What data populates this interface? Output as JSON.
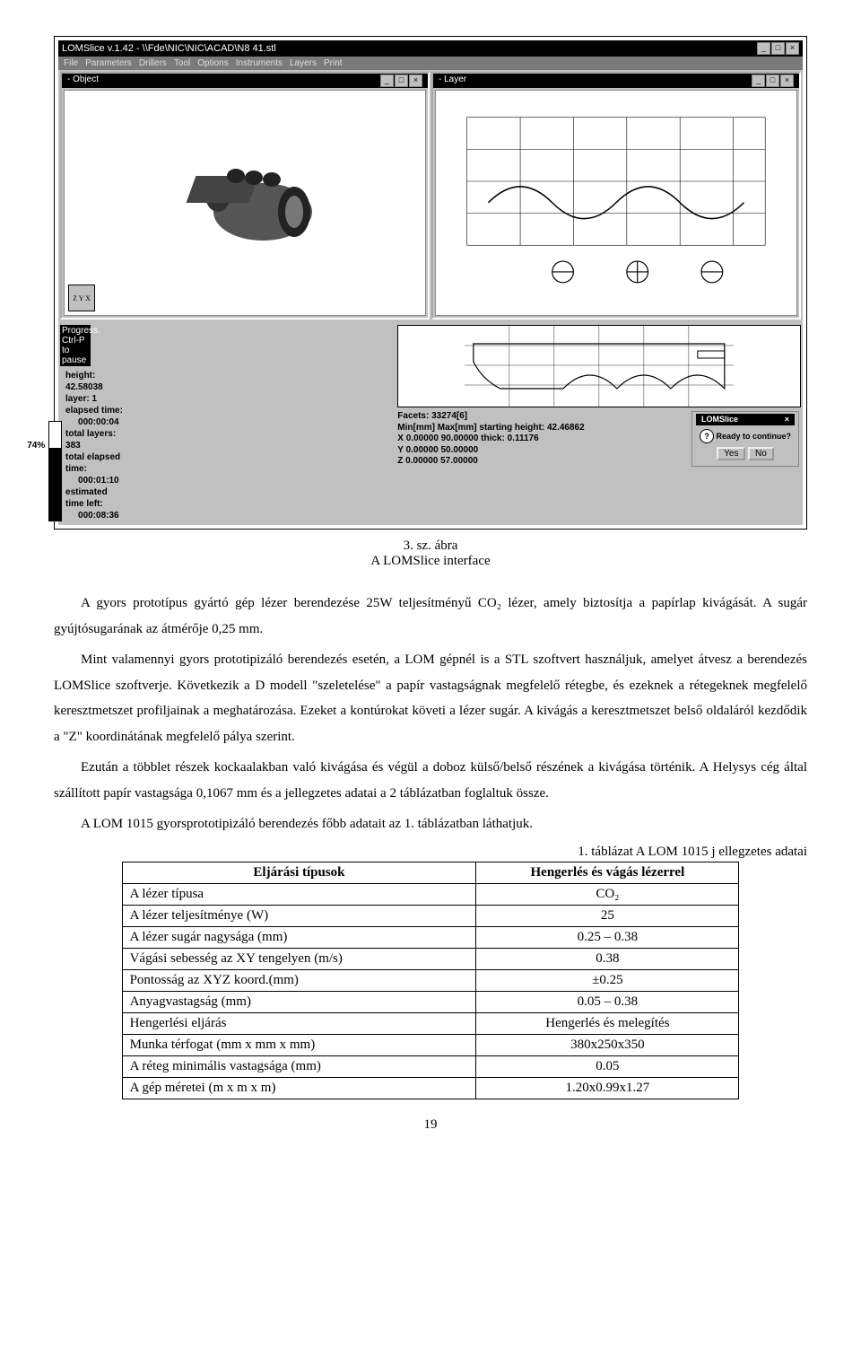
{
  "app": {
    "title": "LOMSlice v.1.42 - \\\\Fde\\NIC\\NIC\\ACAD\\N8 41.stl",
    "menu_items": [
      "File",
      "Parameters",
      "Drillers",
      "Tool",
      "Options",
      "Instruments",
      "Layers",
      "Print"
    ]
  },
  "panels": {
    "left_title": "- Object",
    "right_title": "- Layer",
    "axis_label": "Z Y\nX"
  },
  "progress": {
    "header": "Progress. Ctrl-P to pause",
    "percent_label": "74%",
    "fill_pct": 74,
    "height_label": "height:  42.58038",
    "layer_label": "layer:    1",
    "elapsed_label": "elapsed time:",
    "elapsed_val": "000:00:04",
    "total_layers_label": "total layers:   383",
    "total_elapsed_label": "total elapsed time:",
    "total_elapsed_val": "000:01:10",
    "est_left_label": "estimated time left:",
    "est_left_val": "000:08:36"
  },
  "facets": {
    "header": "Facets: 33274[6]",
    "row_head": "Min[mm]   Max[mm]   starting height: 42.46862",
    "rowx": "X 0.00000   90.00000   thick: 0.11176",
    "rowy": "Y 0.00000   50.00000",
    "rowz": "Z 0.00000   57.00000"
  },
  "ready_dialog": {
    "title": "LOMSlice",
    "text": "Ready to continue?",
    "yes": "Yes",
    "no": "No"
  },
  "caption": {
    "fig_num": "3. sz. ábra",
    "fig_title": "A LOMSlice interface"
  },
  "paragraphs": {
    "p1": "A gyors prototípus gyártó gép lézer berendezése 25W teljesítményű CO₂ lézer, amely biztosítja a papírlap kivágását. A sugár gyújtósugarának az átmérője 0,25 mm.",
    "p2": "Mint valamennyi gyors prototipizáló berendezés esetén, a LOM gépnél is a STL szoftvert használjuk, amelyet átvesz a berendezés LOMSlice szoftverje. Következik a D modell \"szeletelése\" a papír vastagságnak megfelelő rétegbe, és ezeknek a rétegeknek megfelelő keresztmetszet profiljainak a meghatározása. Ezeket a kontúrokat követi a lézer sugár. A kivágás a keresztmetszet belső oldaláról kezdődik a \"Z\" koordinátának megfelelő pálya szerint.",
    "p3": "Ezután a többlet részek kockaalakban való kivágása és végül a doboz külső/belső részének a kivágása történik. A Helysys cég által szállított papír vastagsága 0,1067 mm és a jellegzetes adatai a 2 táblázatban foglaltuk össze.",
    "p4": "A LOM 1015 gyorsprototipizáló berendezés főbb adatait az 1. táblázatban láthatjuk."
  },
  "table": {
    "caption": "1. táblázat A LOM 1015 j ellegzetes adatai",
    "head_left": "Eljárási típusok",
    "head_right": "Hengerlés és vágás lézerrel",
    "rows": [
      {
        "label": "A lézer típusa",
        "value": "CO₂"
      },
      {
        "label": "A lézer teljesítménye (W)",
        "value": "25"
      },
      {
        "label": "A lézer sugár nagysága (mm)",
        "value": "0.25 – 0.38"
      },
      {
        "label": "Vágási sebesség az XY tengelyen (m/s)",
        "value": "0.38"
      },
      {
        "label": "Pontosság az XYZ koord.(mm)",
        "value": "±0.25"
      },
      {
        "label": "Anyagvastagság (mm)",
        "value": "0.05 – 0.38"
      },
      {
        "label": "Hengerlési eljárás",
        "value": "Hengerlés és melegítés"
      },
      {
        "label": "Munka térfogat (mm x mm x mm)",
        "value": "380x250x350"
      },
      {
        "label": "A réteg minimális vastagsága (mm)",
        "value": "0.05"
      },
      {
        "label": "A gép méretei (m x m x m)",
        "value": "1.20x0.99x1.27"
      }
    ]
  },
  "page_number": "19"
}
